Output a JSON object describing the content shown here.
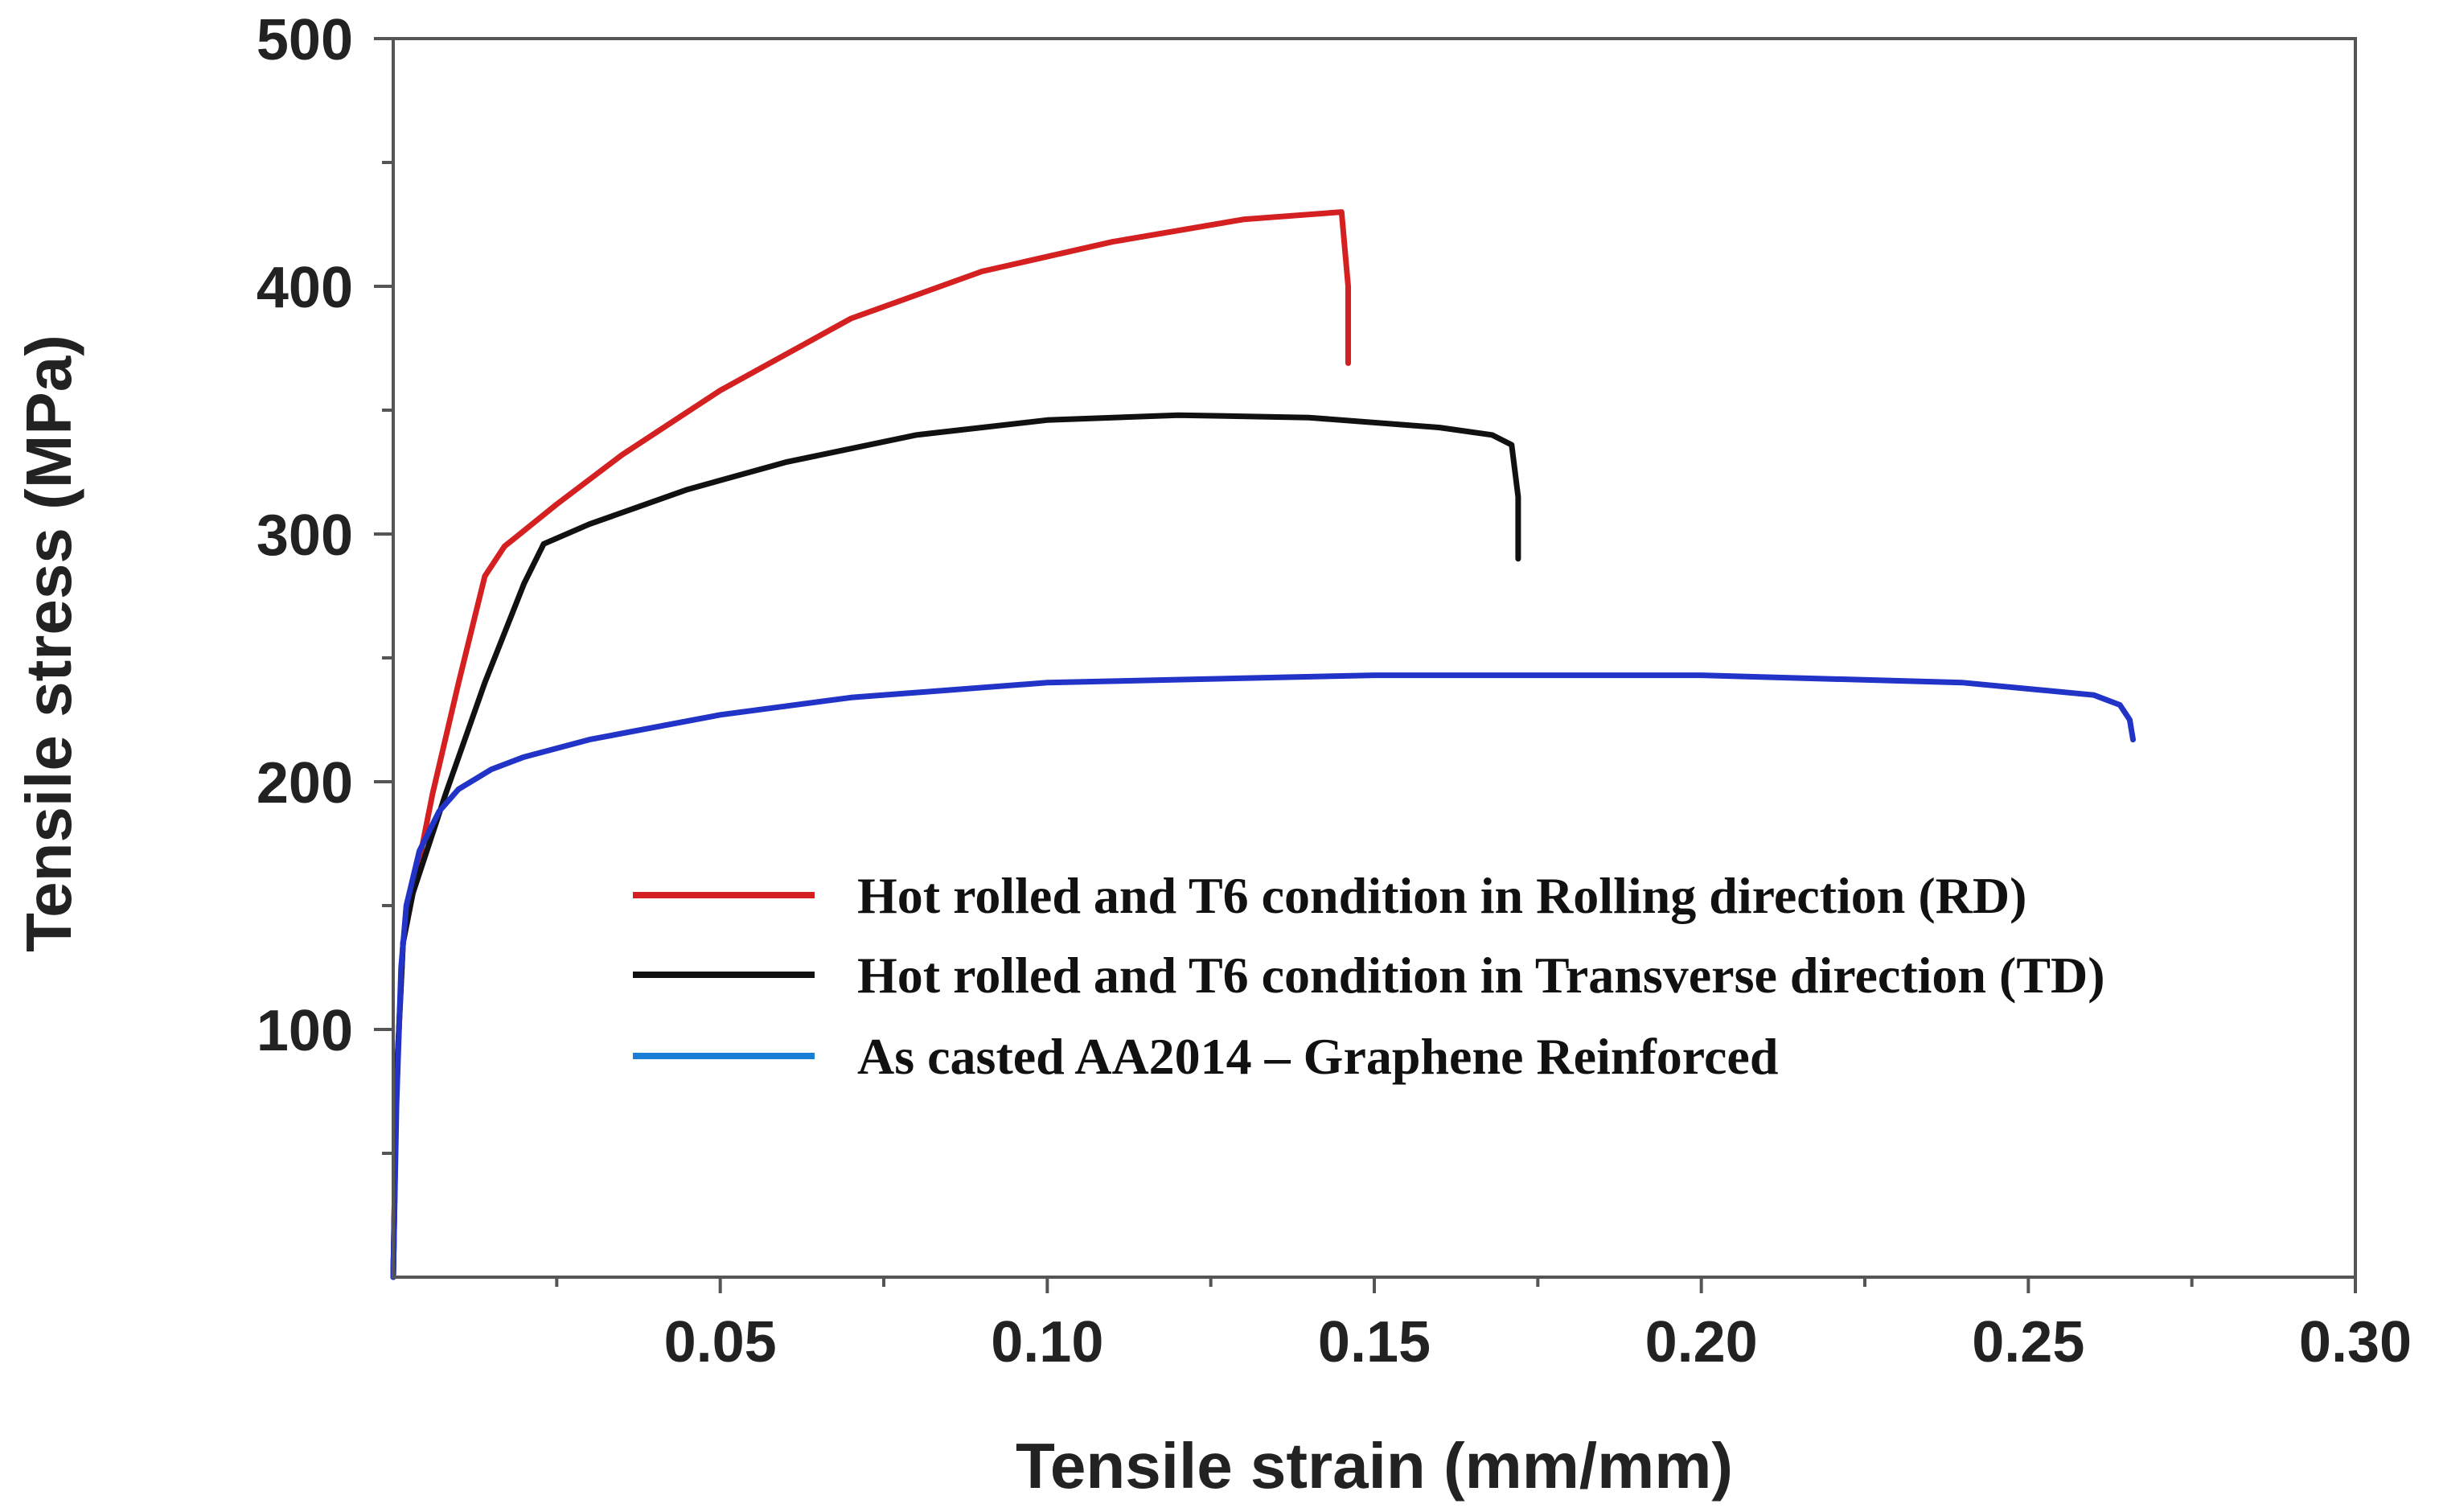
{
  "chart_data": {
    "type": "line",
    "title": "",
    "xlabel": "Tensile strain (mm/mm)",
    "ylabel": "Tensile stress (MPa)",
    "xlim": [
      0,
      0.3
    ],
    "ylim": [
      0,
      500
    ],
    "x_ticks": [
      {
        "value": 0.05,
        "label": "0.05"
      },
      {
        "value": 0.1,
        "label": "0.10"
      },
      {
        "value": 0.15,
        "label": "0.15"
      },
      {
        "value": 0.2,
        "label": "0.20"
      },
      {
        "value": 0.25,
        "label": "0.25"
      },
      {
        "value": 0.3,
        "label": "0.30"
      }
    ],
    "x_minor_ticks": [
      0.025,
      0.075,
      0.125,
      0.175,
      0.225,
      0.275
    ],
    "y_ticks": [
      {
        "value": 100,
        "label": "100"
      },
      {
        "value": 200,
        "label": "200"
      },
      {
        "value": 300,
        "label": "300"
      },
      {
        "value": 400,
        "label": "400"
      },
      {
        "value": 500,
        "label": "500"
      }
    ],
    "y_minor_ticks": [
      50,
      150,
      250,
      350,
      450
    ],
    "grid": false,
    "legend_position": "center-bottom",
    "series": [
      {
        "name": "Hot rolled and T6 condition in Rolling direction (RD)",
        "color": "#d42020",
        "x": [
          0.0,
          0.0005,
          0.0015,
          0.003,
          0.006,
          0.01,
          0.014,
          0.017,
          0.025,
          0.035,
          0.05,
          0.07,
          0.09,
          0.11,
          0.13,
          0.145,
          0.146,
          0.146
        ],
        "y": [
          0,
          80,
          135,
          155,
          195,
          240,
          283,
          295,
          312,
          332,
          358,
          387,
          406,
          418,
          427,
          430,
          400,
          369
        ]
      },
      {
        "name": "Hot rolled and T6 condition in Transverse direction (TD)",
        "color": "#111111",
        "x": [
          0.0,
          0.0005,
          0.0015,
          0.003,
          0.008,
          0.014,
          0.02,
          0.023,
          0.03,
          0.045,
          0.06,
          0.08,
          0.1,
          0.12,
          0.14,
          0.16,
          0.168,
          0.171,
          0.172,
          0.172
        ],
        "y": [
          0,
          80,
          135,
          155,
          195,
          240,
          280,
          296,
          304,
          318,
          329,
          340,
          346,
          348,
          347,
          343,
          340,
          336,
          315,
          290
        ]
      },
      {
        "name": "As casted AA2014 – Graphene Reinforced",
        "color": "#2233c8",
        "x": [
          0.0,
          0.0005,
          0.0012,
          0.002,
          0.004,
          0.007,
          0.01,
          0.015,
          0.02,
          0.03,
          0.05,
          0.07,
          0.1,
          0.15,
          0.2,
          0.24,
          0.26,
          0.264,
          0.2655,
          0.266
        ],
        "y": [
          0,
          70,
          125,
          150,
          172,
          188,
          197,
          205,
          210,
          217,
          227,
          234,
          240,
          243,
          243,
          240,
          235,
          231,
          225,
          217
        ]
      }
    ]
  },
  "legend": {
    "items": [
      {
        "label": "Hot rolled and T6 condition in Rolling direction (RD)",
        "color": "#d42020"
      },
      {
        "label": "Hot rolled and T6 condition in Transverse direction (TD)",
        "color": "#111111"
      },
      {
        "label": "As casted AA2014 – Graphene Reinforced",
        "color": "#1a7fd4"
      }
    ]
  }
}
